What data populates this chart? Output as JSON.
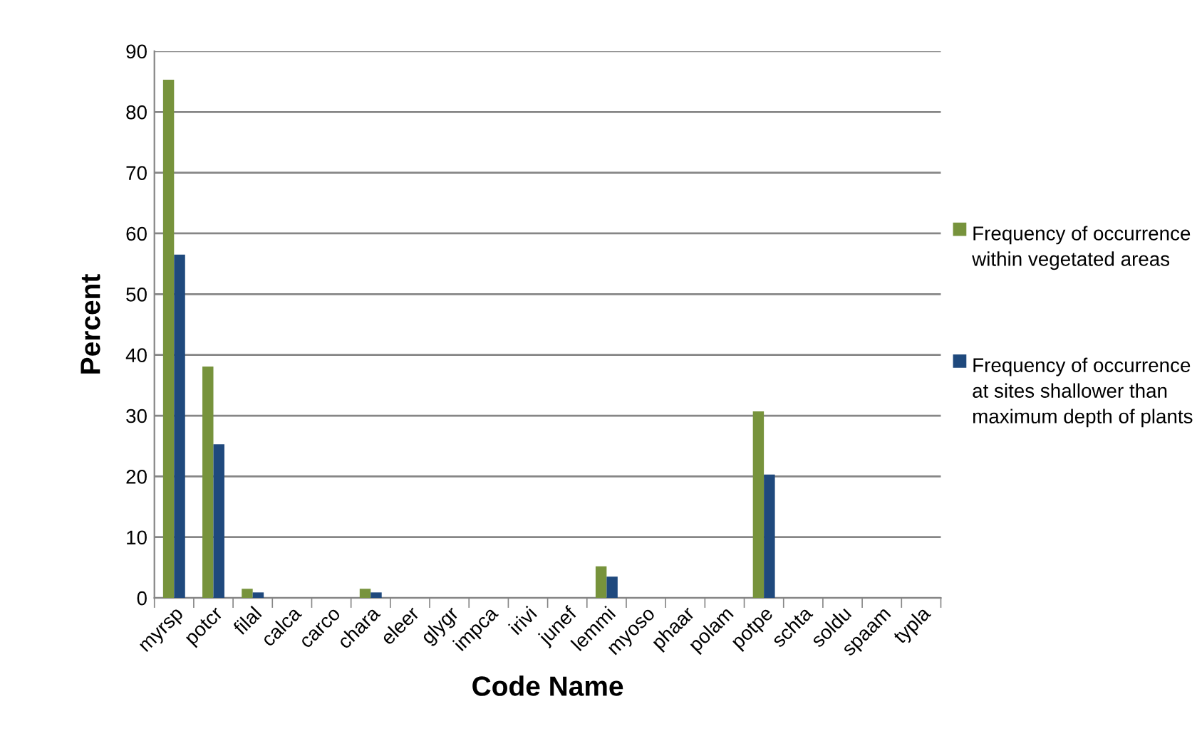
{
  "chart_data": {
    "type": "bar",
    "xlabel": "Code Name",
    "ylabel": "Percent",
    "categories": [
      "myrsp",
      "potcr",
      "filal",
      "calca",
      "carco",
      "chara",
      "eleer",
      "glygr",
      "impca",
      "irivi",
      "junef",
      "lemmi",
      "myoso",
      "phaar",
      "polam",
      "potpe",
      "schta",
      "soldu",
      "spaam",
      "typla"
    ],
    "series": [
      {
        "name": "Frequency of occurrence within vegetated areas",
        "color": "#77933c",
        "values": [
          85.3,
          38.1,
          1.5,
          0,
          0,
          1.5,
          0,
          0,
          0,
          0,
          0,
          5.2,
          0,
          0,
          0,
          30.7,
          0,
          0,
          0,
          0
        ]
      },
      {
        "name": "Frequency of occurrence at sites shallower than maximum depth of plants",
        "color": "#1f497d",
        "values": [
          56.5,
          25.3,
          0.9,
          0,
          0,
          0.9,
          0,
          0,
          0,
          0,
          0,
          3.5,
          0,
          0,
          0,
          20.3,
          0,
          0,
          0,
          0
        ]
      }
    ],
    "ylim": [
      0,
      90
    ],
    "yticks": [
      0,
      10,
      20,
      30,
      40,
      50,
      60,
      70,
      80,
      90
    ],
    "grid": "y",
    "legend": "right"
  }
}
